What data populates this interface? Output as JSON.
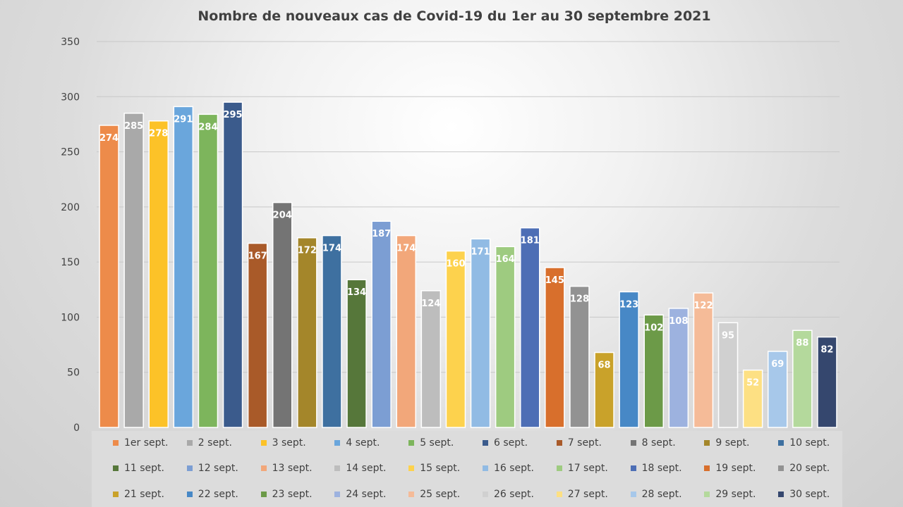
{
  "chart_data": {
    "type": "bar",
    "title": "Nombre de nouveaux cas de Covid-19 du 1er au 30 septembre 2021",
    "xlabel": "",
    "ylabel": "",
    "ylim": [
      0,
      350
    ],
    "yticks": [
      0,
      50,
      100,
      150,
      200,
      250,
      300,
      350
    ],
    "grid": true,
    "legend_position": "bottom",
    "categories": [
      "1er sept.",
      "2 sept.",
      "3 sept.",
      "4 sept.",
      "5 sept.",
      "6 sept.",
      "7 sept.",
      "8 sept.",
      "9 sept.",
      "10 sept.",
      "11 sept.",
      "12 sept.",
      "13 sept.",
      "14 sept.",
      "15 sept.",
      "16 sept.",
      "17 sept.",
      "18 sept.",
      "19 sept.",
      "20 sept.",
      "21 sept.",
      "22 sept.",
      "23 sept.",
      "24 sept.",
      "25 sept.",
      "26 sept.",
      "27 sept.",
      "28 sept.",
      "29 sept.",
      "30 sept."
    ],
    "values": [
      274,
      285,
      278,
      291,
      284,
      295,
      167,
      204,
      172,
      174,
      134,
      187,
      174,
      124,
      160,
      171,
      164,
      181,
      145,
      128,
      68,
      123,
      102,
      108,
      122,
      95,
      52,
      69,
      88,
      82
    ],
    "colors": [
      "#ed8b4a",
      "#a9a9a9",
      "#fcc228",
      "#6aa6dc",
      "#7db55c",
      "#3b5b8c",
      "#a95a29",
      "#747474",
      "#a4862a",
      "#3e70a0",
      "#56773a",
      "#7c9ed3",
      "#f2a77a",
      "#bdbdbd",
      "#fdd24d",
      "#91bbe4",
      "#9ecb80",
      "#4d6eb5",
      "#d86f2c",
      "#929292",
      "#c9a22a",
      "#4788c6",
      "#6c9a48",
      "#9db2df",
      "#f5bb98",
      "#d0d0d0",
      "#fde083",
      "#a7c8ea",
      "#b4d99c",
      "#35476e"
    ]
  }
}
